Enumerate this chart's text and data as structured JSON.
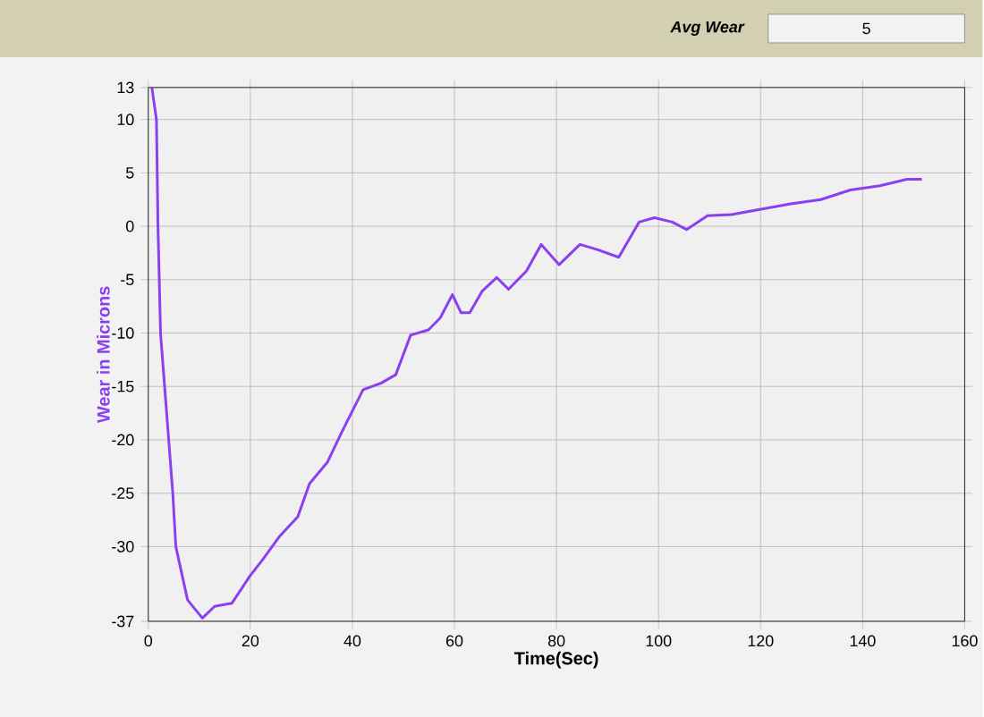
{
  "chart_data": {
    "type": "line",
    "xlabel": "Time(Sec)",
    "ylabel": "Wear in Microns",
    "annotations": [
      "Avg Wear",
      "5"
    ],
    "xlim": [
      0,
      160
    ],
    "ylim": [
      -37,
      13
    ],
    "xticks": [
      0,
      20,
      40,
      60,
      80,
      100,
      120,
      140,
      160
    ],
    "yticks": [
      13,
      10,
      5,
      0,
      -5,
      -10,
      -15,
      -20,
      -25,
      -30,
      -37
    ],
    "grid": true,
    "series": [
      {
        "color": "#8a3ff0",
        "x": [
          0.7,
          1.6,
          1.9,
          2.4,
          4,
          4.8,
          5.4,
          7.7,
          10.6,
          13,
          16.4,
          20,
          22.3,
          25.8,
          29.3,
          31.6,
          35.1,
          38,
          42.1,
          45.6,
          48.5,
          51.4,
          54.9,
          57.2,
          59.6,
          61.3,
          63,
          65.4,
          68.3,
          70.6,
          74.1,
          77,
          80.5,
          84.6,
          88.1,
          92.2,
          96.2,
          99.2,
          102.7,
          105.5,
          109.6,
          114.3,
          120.1,
          125.9,
          131.8,
          137.6,
          143.4,
          148.7,
          151.6
        ],
        "values": [
          13,
          10,
          0,
          -10,
          -20,
          -25,
          -30,
          -35,
          -36.7,
          -35.6,
          -35.3,
          -32.7,
          -31.3,
          -29,
          -27.2,
          -24.1,
          -22.1,
          -19.2,
          -15.3,
          -14.7,
          -13.9,
          -10.2,
          -9.7,
          -8.6,
          -6.4,
          -8.1,
          -8.1,
          -6.1,
          -4.8,
          -5.9,
          -4.2,
          -1.7,
          -3.6,
          -1.7,
          -2.2,
          -2.9,
          0.4,
          0.8,
          0.4,
          -0.3,
          1,
          1.1,
          1.6,
          2.1,
          2.5,
          3.4,
          3.8,
          4.4,
          4.4
        ]
      }
    ]
  }
}
